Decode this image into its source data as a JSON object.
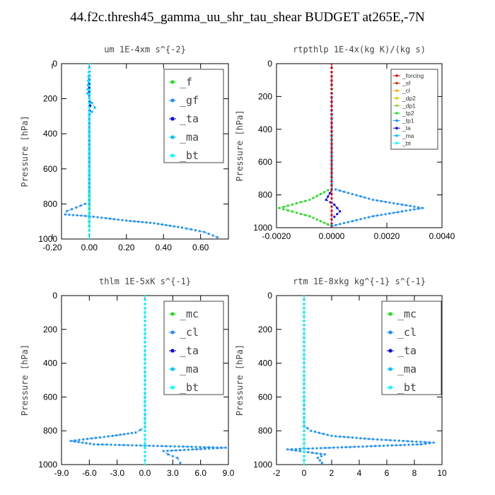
{
  "title": "44.f2c.thresh45_gamma_uu_shr_tau_shear  BUDGET at265E,-7N",
  "colors": {
    "frame": "#000000",
    "f": "#22dd22",
    "gf": "#1e90ff",
    "ta": "#0000ee",
    "ma": "#00bfff",
    "bt": "#00ffff",
    "mc": "#22dd22",
    "cl": "#1e90ff",
    "forcing": "#dd0000",
    "sf": "#cc3300",
    "cl_orange": "#ffaa00",
    "dp2": "#cccc00",
    "dp1": "#9acd32",
    "tp2": "#22dd22",
    "tp1": "#1e90ff"
  },
  "chart_data": [
    {
      "type": "line",
      "title": "um   1E-4xm s^{-2}",
      "ylabel": "Pressure [hPa]",
      "xlim": [
        -0.15,
        0.75
      ],
      "ylim": [
        1000,
        0
      ],
      "xticks": [
        -0.2,
        0.0,
        0.2,
        0.4,
        0.6
      ],
      "xtick_labels": [
        "-0.20",
        "0.00",
        "0.20",
        "0.40",
        "0.60"
      ],
      "yticks": [
        0,
        200,
        400,
        600,
        800,
        1000
      ],
      "ytick_labels": [
        "0",
        "200",
        "400",
        "600",
        "800",
        "1000"
      ],
      "legend_style": "big",
      "legend_position": "top-right",
      "legend": [
        "_f",
        "_gf",
        "_ta",
        "_ma",
        "_bt"
      ],
      "series": [
        {
          "name": "_f",
          "color_key": "f",
          "x": [
            0,
            0,
            0,
            0,
            0,
            0,
            0,
            0,
            0,
            0,
            0,
            0,
            0
          ],
          "y": [
            0,
            100,
            200,
            300,
            400,
            500,
            600,
            700,
            800,
            850,
            900,
            950,
            1000
          ]
        },
        {
          "name": "_gf",
          "color_key": "gf",
          "x": [
            0.0,
            0.0,
            0.0,
            -0.07,
            -0.12,
            -0.13,
            0.0,
            0.2,
            0.35,
            0.5,
            0.62,
            0.69
          ],
          "y": [
            0,
            700,
            790,
            820,
            840,
            860,
            870,
            895,
            910,
            935,
            960,
            990
          ]
        },
        {
          "name": "_ta",
          "color_key": "ta",
          "x": [
            0,
            0,
            0,
            0.005,
            0,
            0
          ],
          "y": [
            0,
            160,
            200,
            240,
            300,
            1000
          ]
        },
        {
          "name": "_ma",
          "color_key": "ma",
          "x": [
            0,
            -0.01,
            0.0,
            0.03,
            0.0,
            0
          ],
          "y": [
            0,
            170,
            200,
            250,
            300,
            1000
          ]
        },
        {
          "name": "_bt",
          "color_key": "bt",
          "x": [
            0,
            0,
            0,
            0
          ],
          "y": [
            0,
            300,
            600,
            1000
          ]
        }
      ]
    },
    {
      "type": "line",
      "title": "rtpthlp   1E-4x(kg K)/(kg s)",
      "ylabel": "Pressure [hPa]",
      "xlim": [
        -0.002,
        0.004
      ],
      "ylim": [
        1000,
        0
      ],
      "xticks": [
        -0.002,
        0.0,
        0.002,
        0.004
      ],
      "xtick_labels": [
        "-0.0020",
        "0.0000",
        "0.0020",
        "0.0040"
      ],
      "yticks": [
        0,
        200,
        400,
        600,
        800,
        1000
      ],
      "ytick_labels": [
        "0",
        "200",
        "400",
        "600",
        "800",
        "1000"
      ],
      "legend_style": "small",
      "legend_position": "top-right",
      "legend": [
        "_forcing",
        "_sf",
        "_cl",
        "_dp2",
        "_dp1",
        "_tp2",
        "_tp1",
        "_ta",
        "_ma",
        "_bt"
      ],
      "series": [
        {
          "name": "_tp2",
          "color_key": "tp2",
          "x": [
            0,
            0,
            -0.0008,
            -0.0019,
            -0.0008,
            0,
            0
          ],
          "y": [
            0,
            760,
            830,
            880,
            930,
            990,
            1000
          ]
        },
        {
          "name": "_tp1",
          "color_key": "tp1",
          "x": [
            0,
            0,
            0.0015,
            0.0033,
            0.0015,
            0,
            0
          ],
          "y": [
            0,
            760,
            830,
            880,
            930,
            990,
            1000
          ]
        },
        {
          "name": "_ta",
          "color_key": "ta",
          "x": [
            0,
            0,
            -0.0002,
            0.0001,
            0.0003,
            0,
            0
          ],
          "y": [
            0,
            770,
            830,
            860,
            900,
            950,
            1000
          ]
        },
        {
          "name": "_forcing",
          "color_key": "forcing",
          "x": [
            0,
            0
          ],
          "y": [
            0,
            1000
          ]
        }
      ]
    },
    {
      "type": "line",
      "title": "thlm   1E-5xK s^{-1}",
      "ylabel": "Pressure [hPa]",
      "xlim": [
        -9.0,
        9.0
      ],
      "ylim": [
        1000,
        0
      ],
      "xticks": [
        -9.0,
        -6.0,
        -3.0,
        0.0,
        3.0,
        6.0,
        9.0
      ],
      "xtick_labels": [
        "-9.0",
        "-6.0",
        "-3.0",
        "0.0",
        "3.0",
        "6.0",
        "9.0"
      ],
      "yticks": [
        0,
        200,
        400,
        600,
        800,
        1000
      ],
      "ytick_labels": [
        "0",
        "200",
        "400",
        "600",
        "800",
        "1000"
      ],
      "legend_style": "big",
      "legend_position": "top-right",
      "legend": [
        "_mc",
        "_cl",
        "_ta",
        "_ma",
        "_bt"
      ],
      "series": [
        {
          "name": "_mc",
          "color_key": "mc",
          "x": [
            0,
            0,
            0,
            0
          ],
          "y": [
            0,
            300,
            600,
            1000
          ]
        },
        {
          "name": "_cl",
          "color_key": "cl",
          "x": [
            0,
            0,
            -1.0,
            -3.5,
            -8.0,
            -5.5,
            8.7,
            2.0,
            2.5,
            3.5,
            3.8
          ],
          "y": [
            0,
            780,
            810,
            830,
            860,
            880,
            900,
            920,
            940,
            960,
            990
          ]
        },
        {
          "name": "_ta",
          "color_key": "ta",
          "x": [
            0,
            0,
            0,
            0
          ],
          "y": [
            0,
            300,
            600,
            1000
          ]
        },
        {
          "name": "_ma",
          "color_key": "ma",
          "x": [
            0,
            0,
            0,
            0
          ],
          "y": [
            0,
            300,
            600,
            1000
          ]
        },
        {
          "name": "_bt",
          "color_key": "bt",
          "x": [
            0,
            0,
            0,
            0
          ],
          "y": [
            0,
            300,
            600,
            1000
          ]
        }
      ]
    },
    {
      "type": "line",
      "title": "rtm   1E-8xkg kg^{-1} s^{-1}",
      "ylabel": "Pressure [hPa]",
      "xlim": [
        -2,
        10
      ],
      "ylim": [
        1000,
        0
      ],
      "xticks": [
        -2,
        0,
        2,
        4,
        6,
        8,
        10
      ],
      "xtick_labels": [
        "-2",
        "0",
        "2",
        "4",
        "6",
        "8",
        "10"
      ],
      "yticks": [
        0,
        200,
        400,
        600,
        800,
        1000
      ],
      "ytick_labels": [
        "0",
        "200",
        "400",
        "600",
        "800",
        "1000"
      ],
      "legend_style": "big",
      "legend_position": "top-right",
      "legend": [
        "_mc",
        "_cl",
        "_ta",
        "_ma",
        "_bt"
      ],
      "series": [
        {
          "name": "_mc",
          "color_key": "mc",
          "x": [
            0,
            0,
            0,
            0
          ],
          "y": [
            0,
            300,
            600,
            1000
          ]
        },
        {
          "name": "_cl",
          "color_key": "cl",
          "x": [
            0,
            0,
            0.5,
            2.0,
            5.0,
            9.4,
            8.5,
            -1.2,
            1.5,
            1.0,
            1.3
          ],
          "y": [
            0,
            770,
            800,
            830,
            850,
            870,
            880,
            910,
            940,
            960,
            990
          ]
        },
        {
          "name": "_ta",
          "color_key": "ta",
          "x": [
            0,
            0,
            0,
            0
          ],
          "y": [
            0,
            300,
            600,
            1000
          ]
        },
        {
          "name": "_ma",
          "color_key": "ma",
          "x": [
            0,
            0,
            0,
            0
          ],
          "y": [
            0,
            300,
            600,
            1000
          ]
        },
        {
          "name": "_bt",
          "color_key": "bt",
          "x": [
            0,
            0,
            0,
            0
          ],
          "y": [
            0,
            300,
            600,
            1000
          ]
        }
      ]
    }
  ]
}
